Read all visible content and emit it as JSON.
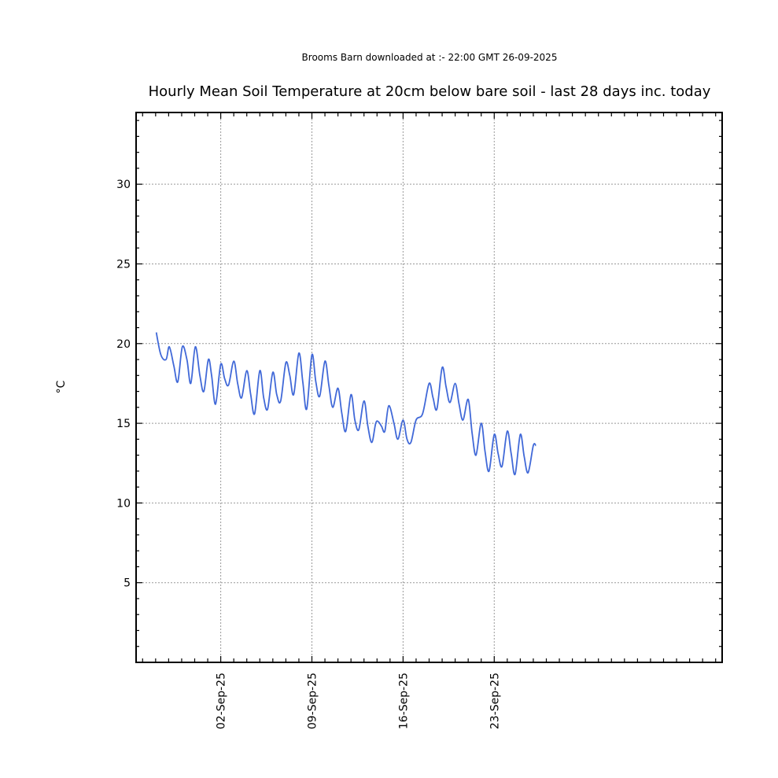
{
  "chart_data": {
    "type": "line",
    "subtitle": "Brooms Barn downloaded at :- 22:00 GMT 26-09-2025",
    "title": "Hourly Mean Soil Temperature at 20cm below bare soil - last 28 days inc. today",
    "xlabel": "",
    "ylabel": "°C",
    "ylim": [
      0,
      34.5
    ],
    "xlim_days": [
      -5.5,
      39.5
    ],
    "yticks": [
      5,
      10,
      15,
      20,
      25,
      30
    ],
    "x_ticks": [
      {
        "label": "02-Sep-25",
        "day": 1
      },
      {
        "label": "09-Sep-25",
        "day": 8
      },
      {
        "label": "16-Sep-25",
        "day": 15
      },
      {
        "label": "23-Sep-25",
        "day": 22
      }
    ],
    "grid": true,
    "line_color": "#4169d8",
    "series": [
      {
        "points": [
          [
            -3.95,
            20.7
          ],
          [
            -3.6,
            19.3
          ],
          [
            -3.2,
            19.0
          ],
          [
            -2.95,
            19.8
          ],
          [
            -2.6,
            18.6
          ],
          [
            -2.3,
            17.6
          ],
          [
            -1.95,
            19.8
          ],
          [
            -1.6,
            19.0
          ],
          [
            -1.3,
            17.5
          ],
          [
            -0.95,
            19.8
          ],
          [
            -0.6,
            18.0
          ],
          [
            -0.3,
            17.0
          ],
          [
            0.05,
            19.0
          ],
          [
            0.3,
            18.0
          ],
          [
            0.6,
            16.2
          ],
          [
            1.0,
            18.7
          ],
          [
            1.3,
            17.8
          ],
          [
            1.6,
            17.4
          ],
          [
            2.0,
            18.9
          ],
          [
            2.3,
            17.5
          ],
          [
            2.6,
            16.6
          ],
          [
            3.0,
            18.3
          ],
          [
            3.3,
            16.8
          ],
          [
            3.6,
            15.6
          ],
          [
            4.0,
            18.3
          ],
          [
            4.3,
            16.6
          ],
          [
            4.6,
            15.9
          ],
          [
            5.0,
            18.2
          ],
          [
            5.3,
            16.8
          ],
          [
            5.6,
            16.4
          ],
          [
            6.0,
            18.8
          ],
          [
            6.3,
            18.0
          ],
          [
            6.6,
            16.8
          ],
          [
            7.0,
            19.4
          ],
          [
            7.3,
            17.6
          ],
          [
            7.6,
            15.9
          ],
          [
            8.0,
            19.3
          ],
          [
            8.3,
            17.6
          ],
          [
            8.6,
            16.7
          ],
          [
            9.0,
            18.9
          ],
          [
            9.3,
            17.4
          ],
          [
            9.6,
            16.0
          ],
          [
            10.0,
            17.2
          ],
          [
            10.3,
            15.6
          ],
          [
            10.6,
            14.5
          ],
          [
            11.0,
            16.8
          ],
          [
            11.3,
            15.2
          ],
          [
            11.6,
            14.6
          ],
          [
            12.0,
            16.4
          ],
          [
            12.3,
            14.8
          ],
          [
            12.6,
            13.8
          ],
          [
            12.9,
            15.0
          ],
          [
            13.1,
            15.1
          ],
          [
            13.35,
            14.8
          ],
          [
            13.6,
            14.5
          ],
          [
            13.9,
            16.1
          ],
          [
            14.3,
            15.0
          ],
          [
            14.6,
            14.0
          ],
          [
            15.0,
            15.2
          ],
          [
            15.3,
            14.0
          ],
          [
            15.6,
            13.8
          ],
          [
            16.0,
            15.2
          ],
          [
            16.5,
            15.6
          ],
          [
            17.0,
            17.5
          ],
          [
            17.3,
            16.6
          ],
          [
            17.6,
            15.9
          ],
          [
            18.0,
            18.5
          ],
          [
            18.3,
            17.3
          ],
          [
            18.6,
            16.3
          ],
          [
            19.0,
            17.5
          ],
          [
            19.3,
            16.2
          ],
          [
            19.6,
            15.2
          ],
          [
            20.0,
            16.5
          ],
          [
            20.3,
            14.4
          ],
          [
            20.6,
            13.0
          ],
          [
            21.0,
            15.0
          ],
          [
            21.3,
            13.2
          ],
          [
            21.6,
            12.0
          ],
          [
            22.0,
            14.3
          ],
          [
            22.3,
            13.1
          ],
          [
            22.6,
            12.3
          ],
          [
            23.0,
            14.5
          ],
          [
            23.3,
            13.1
          ],
          [
            23.6,
            11.8
          ],
          [
            24.0,
            14.3
          ],
          [
            24.3,
            12.9
          ],
          [
            24.6,
            11.9
          ],
          [
            25.0,
            13.6
          ],
          [
            25.2,
            13.6
          ]
        ]
      }
    ]
  }
}
